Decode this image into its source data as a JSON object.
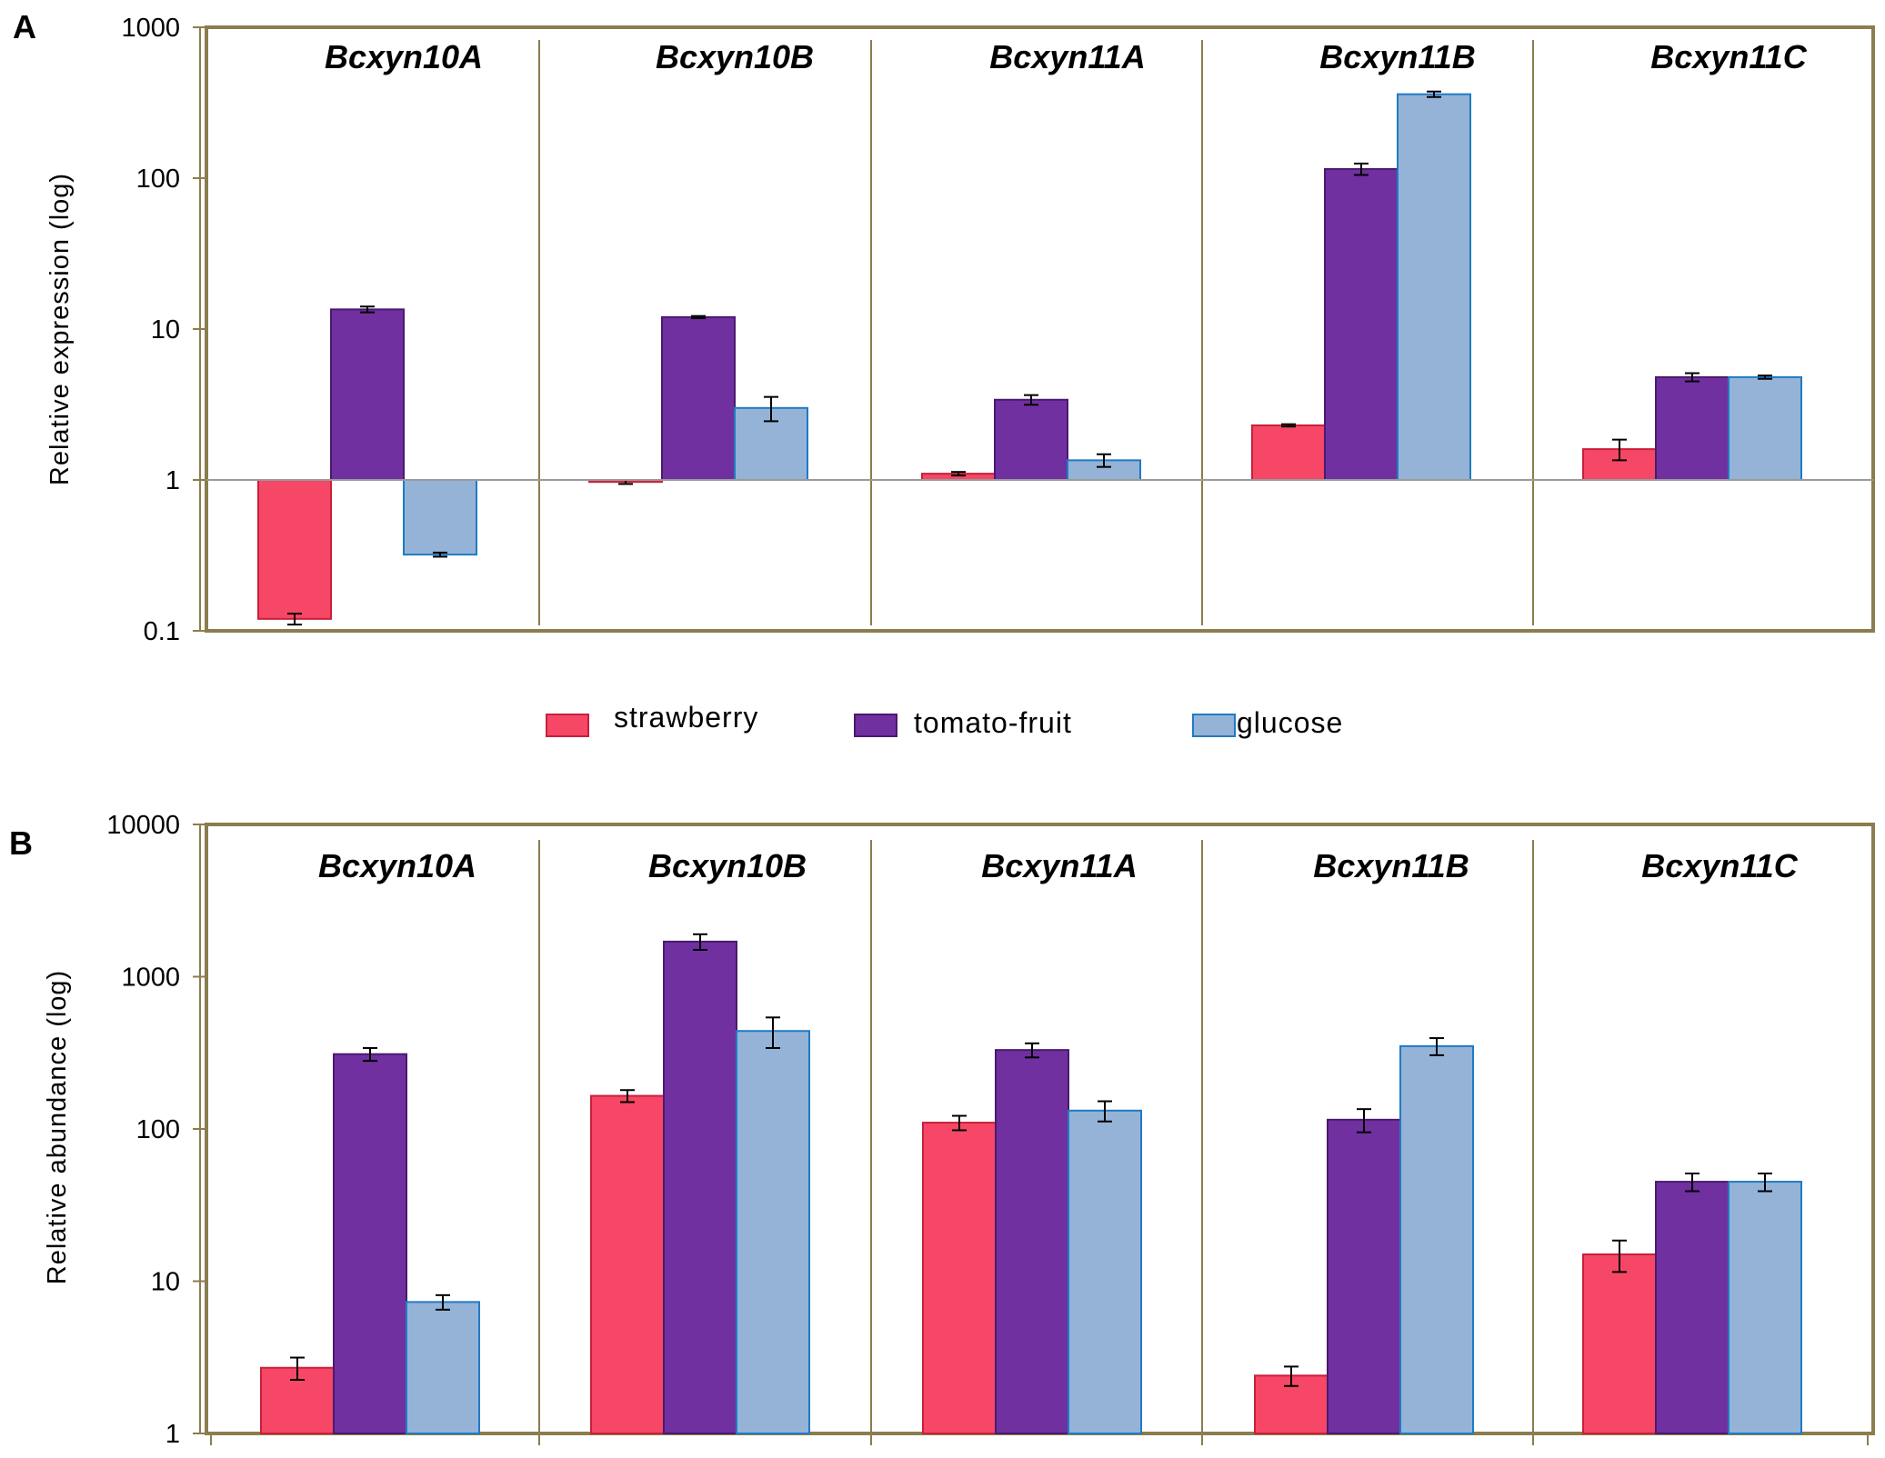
{
  "series_meta": [
    {
      "name": "strawberry",
      "fill": "#f64766",
      "stroke": "#c8203a"
    },
    {
      "name": "tomato-fruit",
      "fill": "#7030a0",
      "stroke": "#4a1a6e"
    },
    {
      "name": "glucose",
      "fill": "#95b3d7",
      "stroke": "#1f7bc4"
    }
  ],
  "chart_data": [
    {
      "type": "bar",
      "panel_label": "A",
      "scale": "log",
      "ylabel": "Relative expression (log)",
      "ylim": [
        0.1,
        1000
      ],
      "baseline": 1,
      "yticks": [
        0.1,
        1,
        10,
        100,
        1000
      ],
      "ytick_labels": [
        "0.1",
        "1",
        "10",
        "100",
        "1000"
      ],
      "categories": [
        "Bcxyn10A",
        "Bcxyn10B",
        "Bcxyn11A",
        "Bcxyn11B",
        "Bcxyn11C"
      ],
      "series": [
        {
          "name": "strawberry",
          "values": [
            0.12,
            0.97,
            1.1,
            2.3,
            1.6
          ],
          "errors": [
            0.01,
            0.03,
            0.03,
            0.04,
            0.25
          ]
        },
        {
          "name": "tomato-fruit",
          "values": [
            13.5,
            12.0,
            3.4,
            115,
            4.8
          ],
          "errors": [
            0.6,
            0.2,
            0.25,
            10,
            0.3
          ]
        },
        {
          "name": "glucose",
          "values": [
            0.32,
            3.0,
            1.35,
            360,
            4.8
          ],
          "errors": [
            0.01,
            0.55,
            0.13,
            15,
            0.12
          ]
        }
      ]
    },
    {
      "type": "bar",
      "panel_label": "B",
      "scale": "log",
      "ylabel": "Relative abundance (log)",
      "ylim": [
        1,
        10000
      ],
      "baseline": 1,
      "yticks": [
        1,
        10,
        100,
        1000,
        10000
      ],
      "ytick_labels": [
        "1",
        "10",
        "100",
        "1000",
        "10000"
      ],
      "categories": [
        "Bcxyn10A",
        "Bcxyn10B",
        "Bcxyn11A",
        "Bcxyn11B",
        "Bcxyn11C"
      ],
      "series": [
        {
          "name": "strawberry",
          "values": [
            2.7,
            165,
            110,
            2.4,
            15
          ],
          "errors": [
            0.45,
            15,
            12,
            0.35,
            3.5
          ]
        },
        {
          "name": "tomato-fruit",
          "values": [
            310,
            1700,
            330,
            115,
            45
          ],
          "errors": [
            30,
            200,
            35,
            20,
            6
          ]
        },
        {
          "name": "glucose",
          "values": [
            7.3,
            440,
            132,
            350,
            45
          ],
          "errors": [
            0.8,
            100,
            20,
            45,
            6
          ]
        }
      ]
    }
  ]
}
